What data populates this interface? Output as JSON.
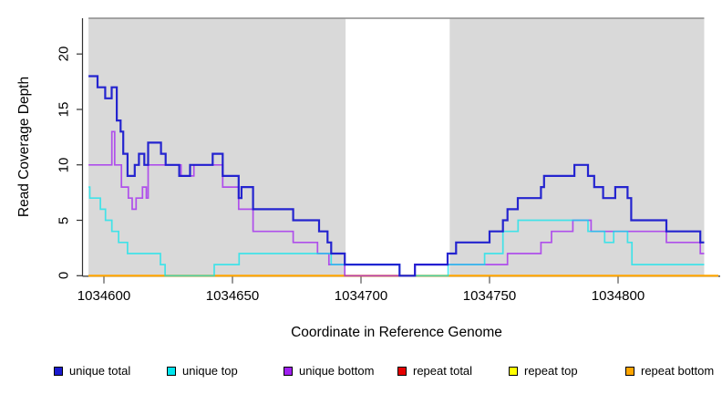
{
  "chart_data": {
    "type": "line",
    "subtype": "step",
    "title": "",
    "xlabel": "Coordinate in Reference Genome",
    "ylabel": "Read Coverage Depth",
    "x_ticks": [
      1034600,
      1034650,
      1034700,
      1034750,
      1034800
    ],
    "y_ticks": [
      0,
      5,
      10,
      15,
      20
    ],
    "xlim": [
      1034594,
      1034833.5
    ],
    "ylim": [
      0,
      23.2
    ],
    "grid": false,
    "legend_position": "bottom",
    "panel_background": "#D9D9D9",
    "highlight_region": {
      "x_range": [
        1034694,
        1034734.5
      ],
      "color": "#FFFFFF"
    },
    "axis_color": "#333333",
    "panel_border_top_color": "#8C8C8C",
    "series": [
      {
        "name": "unique total",
        "color": "#1A1ACF",
        "points": [
          [
            1034594,
            18
          ],
          [
            1034597.5,
            17
          ],
          [
            1034600.5,
            16
          ],
          [
            1034603,
            17
          ],
          [
            1034605,
            14
          ],
          [
            1034606.5,
            13
          ],
          [
            1034607.5,
            11
          ],
          [
            1034609.2,
            9
          ],
          [
            1034612,
            10
          ],
          [
            1034613.6,
            11
          ],
          [
            1034615.7,
            10
          ],
          [
            1034617.2,
            12
          ],
          [
            1034622.2,
            11
          ],
          [
            1034624,
            10
          ],
          [
            1034629.3,
            9
          ],
          [
            1034633.5,
            10
          ],
          [
            1034642.3,
            11
          ],
          [
            1034646.2,
            9
          ],
          [
            1034652.4,
            7
          ],
          [
            1034653.5,
            8
          ],
          [
            1034658,
            6
          ],
          [
            1034673.6,
            5
          ],
          [
            1034683.7,
            4
          ],
          [
            1034687,
            3
          ],
          [
            1034688.4,
            2
          ],
          [
            1034693.7,
            1
          ],
          [
            1034715,
            0
          ],
          [
            1034721,
            1
          ],
          [
            1034733.7,
            2
          ],
          [
            1034737,
            3
          ],
          [
            1034750,
            4
          ],
          [
            1034755.2,
            5
          ],
          [
            1034757,
            6
          ],
          [
            1034761,
            7
          ],
          [
            1034770,
            8
          ],
          [
            1034771.2,
            9
          ],
          [
            1034783,
            10
          ],
          [
            1034788.3,
            9
          ],
          [
            1034790.7,
            8
          ],
          [
            1034794.2,
            7
          ],
          [
            1034798.9,
            8
          ],
          [
            1034803.7,
            7
          ],
          [
            1034805.1,
            5
          ],
          [
            1034818.8,
            4
          ],
          [
            1034832,
            3
          ],
          [
            1034833.5,
            3
          ]
        ]
      },
      {
        "name": "unique top",
        "color": "#00E5EE",
        "points": [
          [
            1034594,
            8
          ],
          [
            1034594.5,
            7
          ],
          [
            1034598.6,
            6
          ],
          [
            1034600.6,
            5
          ],
          [
            1034603.1,
            4
          ],
          [
            1034605.7,
            3
          ],
          [
            1034609.2,
            2
          ],
          [
            1034622,
            1
          ],
          [
            1034623.8,
            0
          ],
          [
            1034642.9,
            1
          ],
          [
            1034652.6,
            2
          ],
          [
            1034688.4,
            1
          ],
          [
            1034715,
            0
          ],
          [
            1034733.9,
            1
          ],
          [
            1034748.1,
            2
          ],
          [
            1034755.2,
            4
          ],
          [
            1034761.1,
            5
          ],
          [
            1034788.3,
            4
          ],
          [
            1034794.8,
            3
          ],
          [
            1034798.3,
            4
          ],
          [
            1034803.7,
            3
          ],
          [
            1034805.4,
            1
          ],
          [
            1034833.5,
            1
          ]
        ]
      },
      {
        "name": "unique bottom",
        "color": "#A020F0",
        "points": [
          [
            1034594,
            10
          ],
          [
            1034603.1,
            13
          ],
          [
            1034604.2,
            10
          ],
          [
            1034606.8,
            8
          ],
          [
            1034609.5,
            7
          ],
          [
            1034611,
            6
          ],
          [
            1034612.5,
            7
          ],
          [
            1034615,
            8
          ],
          [
            1034616.5,
            7
          ],
          [
            1034617.2,
            10
          ],
          [
            1034630,
            9
          ],
          [
            1034635,
            10
          ],
          [
            1034646.2,
            8
          ],
          [
            1034652.4,
            6
          ],
          [
            1034658,
            4
          ],
          [
            1034673.6,
            3
          ],
          [
            1034683.1,
            2
          ],
          [
            1034687.5,
            1
          ],
          [
            1034693.7,
            0
          ],
          [
            1034720.9,
            1
          ],
          [
            1034757,
            2
          ],
          [
            1034770,
            3
          ],
          [
            1034774.1,
            4
          ],
          [
            1034782.4,
            5
          ],
          [
            1034789.5,
            4
          ],
          [
            1034818.8,
            3
          ],
          [
            1034832,
            2
          ],
          [
            1034833.5,
            2
          ]
        ]
      },
      {
        "name": "repeat total",
        "color": "#E60000",
        "points": [
          [
            1034594,
            0
          ],
          [
            1034839,
            0
          ]
        ]
      },
      {
        "name": "repeat top",
        "color": "#FFFF00",
        "points": [
          [
            1034594,
            0
          ],
          [
            1034839,
            0
          ]
        ]
      },
      {
        "name": "repeat bottom",
        "color": "#FFA500",
        "points": [
          [
            1034594,
            0
          ],
          [
            1034839,
            0
          ]
        ]
      }
    ]
  },
  "legend": {
    "items": [
      {
        "label": "unique total",
        "color": "#1A1ACF"
      },
      {
        "label": "unique top",
        "color": "#00E5EE"
      },
      {
        "label": "unique bottom",
        "color": "#A020F0"
      },
      {
        "label": "repeat total",
        "color": "#E60000"
      },
      {
        "label": "repeat top",
        "color": "#FFFF00"
      },
      {
        "label": "repeat bottom",
        "color": "#FFA500"
      }
    ]
  }
}
